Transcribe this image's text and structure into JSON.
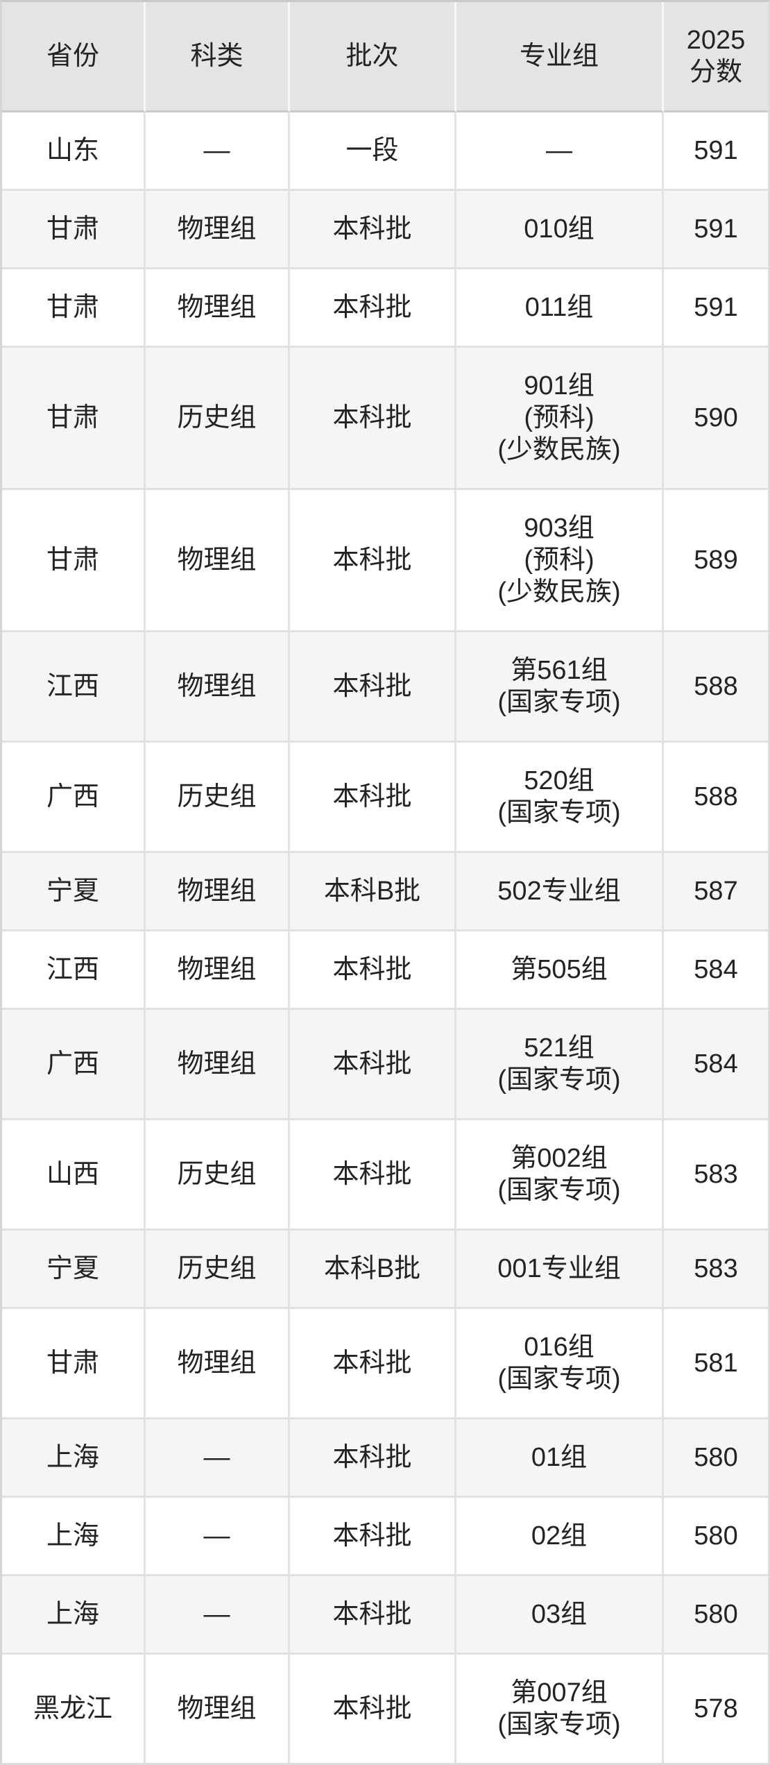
{
  "table": {
    "columns": [
      {
        "key": "province",
        "label": "省份"
      },
      {
        "key": "category",
        "label": "科类"
      },
      {
        "key": "batch",
        "label": "批次"
      },
      {
        "key": "group",
        "label": "专业组"
      },
      {
        "key": "score",
        "label": "2025\n分数"
      }
    ],
    "rows": [
      {
        "province": "山东",
        "category": "—",
        "batch": "一段",
        "group": "—",
        "score": "591"
      },
      {
        "province": "甘肃",
        "category": "物理组",
        "batch": "本科批",
        "group": "010组",
        "score": "591"
      },
      {
        "province": "甘肃",
        "category": "物理组",
        "batch": "本科批",
        "group": "011组",
        "score": "591"
      },
      {
        "province": "甘肃",
        "category": "历史组",
        "batch": "本科批",
        "group": "901组\n(预科)\n(少数民族)",
        "score": "590"
      },
      {
        "province": "甘肃",
        "category": "物理组",
        "batch": "本科批",
        "group": "903组\n(预科)\n(少数民族)",
        "score": "589"
      },
      {
        "province": "江西",
        "category": "物理组",
        "batch": "本科批",
        "group": "第561组\n(国家专项)",
        "score": "588"
      },
      {
        "province": "广西",
        "category": "历史组",
        "batch": "本科批",
        "group": "520组\n(国家专项)",
        "score": "588"
      },
      {
        "province": "宁夏",
        "category": "物理组",
        "batch": "本科B批",
        "group": "502专业组",
        "score": "587"
      },
      {
        "province": "江西",
        "category": "物理组",
        "batch": "本科批",
        "group": "第505组",
        "score": "584"
      },
      {
        "province": "广西",
        "category": "物理组",
        "batch": "本科批",
        "group": "521组\n(国家专项)",
        "score": "584"
      },
      {
        "province": "山西",
        "category": "历史组",
        "batch": "本科批",
        "group": "第002组\n(国家专项)",
        "score": "583"
      },
      {
        "province": "宁夏",
        "category": "历史组",
        "batch": "本科B批",
        "group": "001专业组",
        "score": "583"
      },
      {
        "province": "甘肃",
        "category": "物理组",
        "batch": "本科批",
        "group": "016组\n(国家专项)",
        "score": "581"
      },
      {
        "province": "上海",
        "category": "—",
        "batch": "本科批",
        "group": "01组",
        "score": "580"
      },
      {
        "province": "上海",
        "category": "—",
        "batch": "本科批",
        "group": "02组",
        "score": "580"
      },
      {
        "province": "上海",
        "category": "—",
        "batch": "本科批",
        "group": "03组",
        "score": "580"
      },
      {
        "province": "黑龙江",
        "category": "物理组",
        "batch": "本科批",
        "group": "第007组\n(国家专项)",
        "score": "578"
      }
    ]
  },
  "colors": {
    "header_bg": "#e4e4e4",
    "row_alt_bg": "#f5f5f6",
    "row_bg": "#ffffff",
    "border_body": "#e0e0e0",
    "border_header_bottom": "#c9c9c9",
    "text": "#232323"
  },
  "chart_data": {
    "type": "table",
    "title": "2025分数表",
    "columns": [
      "省份",
      "科类",
      "批次",
      "专业组",
      "2025分数"
    ],
    "rows": [
      [
        "山东",
        "—",
        "一段",
        "—",
        591
      ],
      [
        "甘肃",
        "物理组",
        "本科批",
        "010组",
        591
      ],
      [
        "甘肃",
        "物理组",
        "本科批",
        "011组",
        591
      ],
      [
        "甘肃",
        "历史组",
        "本科批",
        "901组(预科)(少数民族)",
        590
      ],
      [
        "甘肃",
        "物理组",
        "本科批",
        "903组(预科)(少数民族)",
        589
      ],
      [
        "江西",
        "物理组",
        "本科批",
        "第561组(国家专项)",
        588
      ],
      [
        "广西",
        "历史组",
        "本科批",
        "520组(国家专项)",
        588
      ],
      [
        "宁夏",
        "物理组",
        "本科B批",
        "502专业组",
        587
      ],
      [
        "江西",
        "物理组",
        "本科批",
        "第505组",
        584
      ],
      [
        "广西",
        "物理组",
        "本科批",
        "521组(国家专项)",
        584
      ],
      [
        "山西",
        "历史组",
        "本科批",
        "第002组(国家专项)",
        583
      ],
      [
        "宁夏",
        "历史组",
        "本科B批",
        "001专业组",
        583
      ],
      [
        "甘肃",
        "物理组",
        "本科批",
        "016组(国家专项)",
        581
      ],
      [
        "上海",
        "—",
        "本科批",
        "01组",
        580
      ],
      [
        "上海",
        "—",
        "本科批",
        "02组",
        580
      ],
      [
        "上海",
        "—",
        "本科批",
        "03组",
        580
      ],
      [
        "黑龙江",
        "物理组",
        "本科批",
        "第007组(国家专项)",
        578
      ]
    ]
  }
}
